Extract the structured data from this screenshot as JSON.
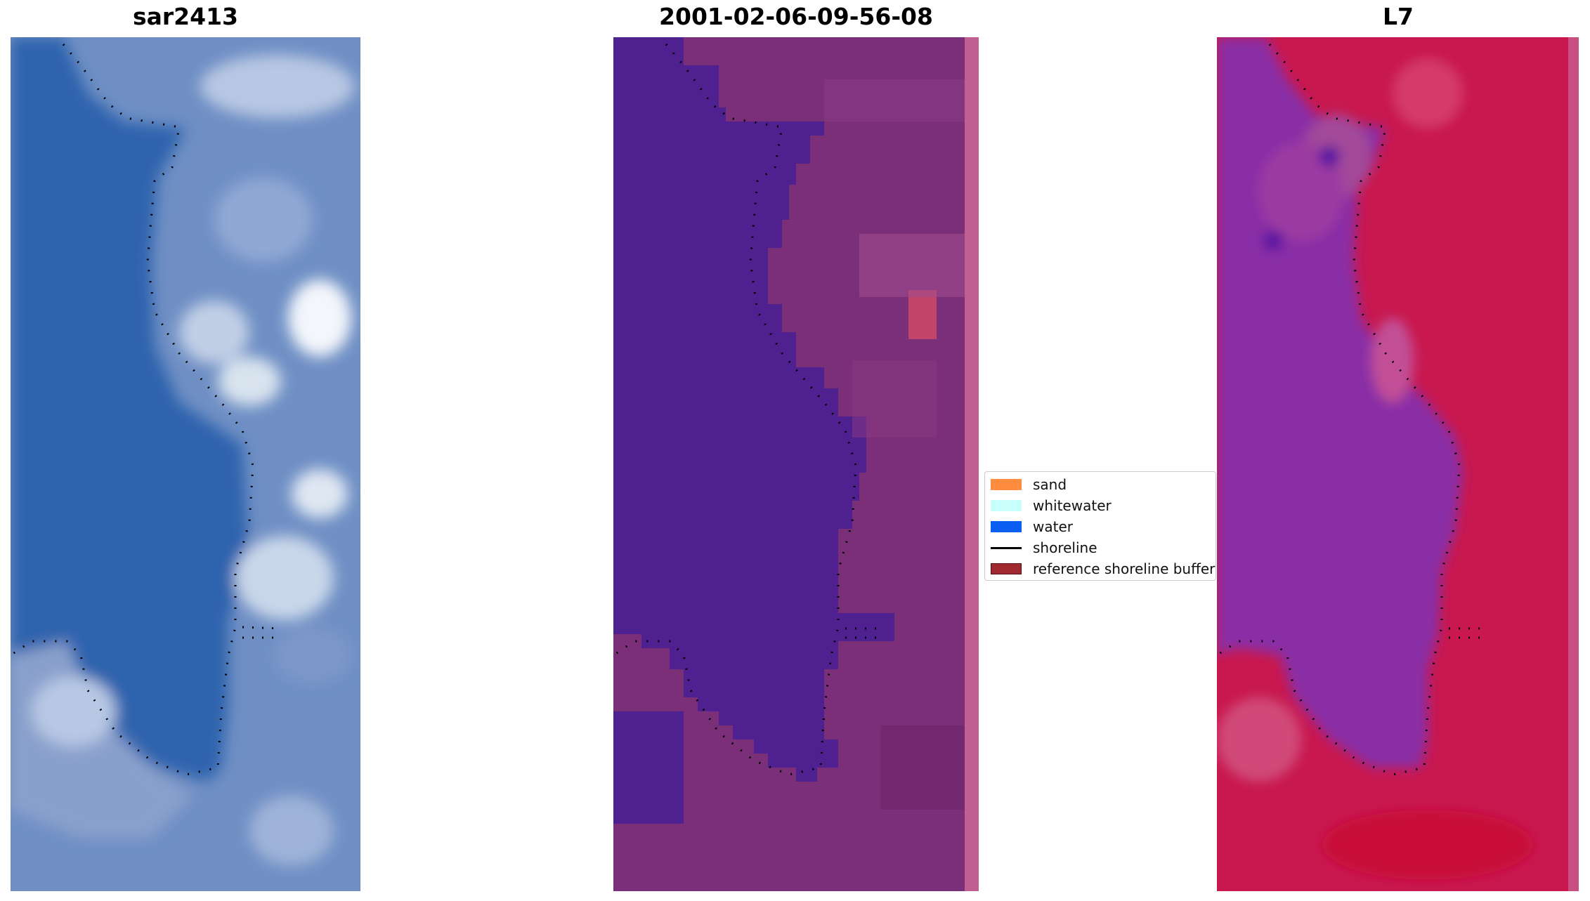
{
  "panels": [
    {
      "title": "sar2413"
    },
    {
      "title": "2001-02-06-09-56-08"
    },
    {
      "title": "L7"
    }
  ],
  "legend": {
    "items": [
      {
        "label": "sand",
        "color": "#ff8c3f",
        "kind": "patch"
      },
      {
        "label": "whitewater",
        "color": "#c8fffa",
        "kind": "patch"
      },
      {
        "label": "water",
        "color": "#0a5ff0",
        "kind": "patch"
      },
      {
        "label": "shoreline",
        "color": "#000000",
        "kind": "line"
      },
      {
        "label": "reference shoreline buffer",
        "color": "#a0282e",
        "kind": "patch"
      }
    ]
  },
  "colors": {
    "rgb_water": "#2f63ad",
    "rgb_land": "#8aa0cc",
    "class_water": "#4f2090",
    "class_land": "#7a2f78",
    "class_strip": "#c06090",
    "mndwi_water": "#8a2ea6",
    "mndwi_land": "#c8184f",
    "mndwi_strip": "#c85080"
  }
}
